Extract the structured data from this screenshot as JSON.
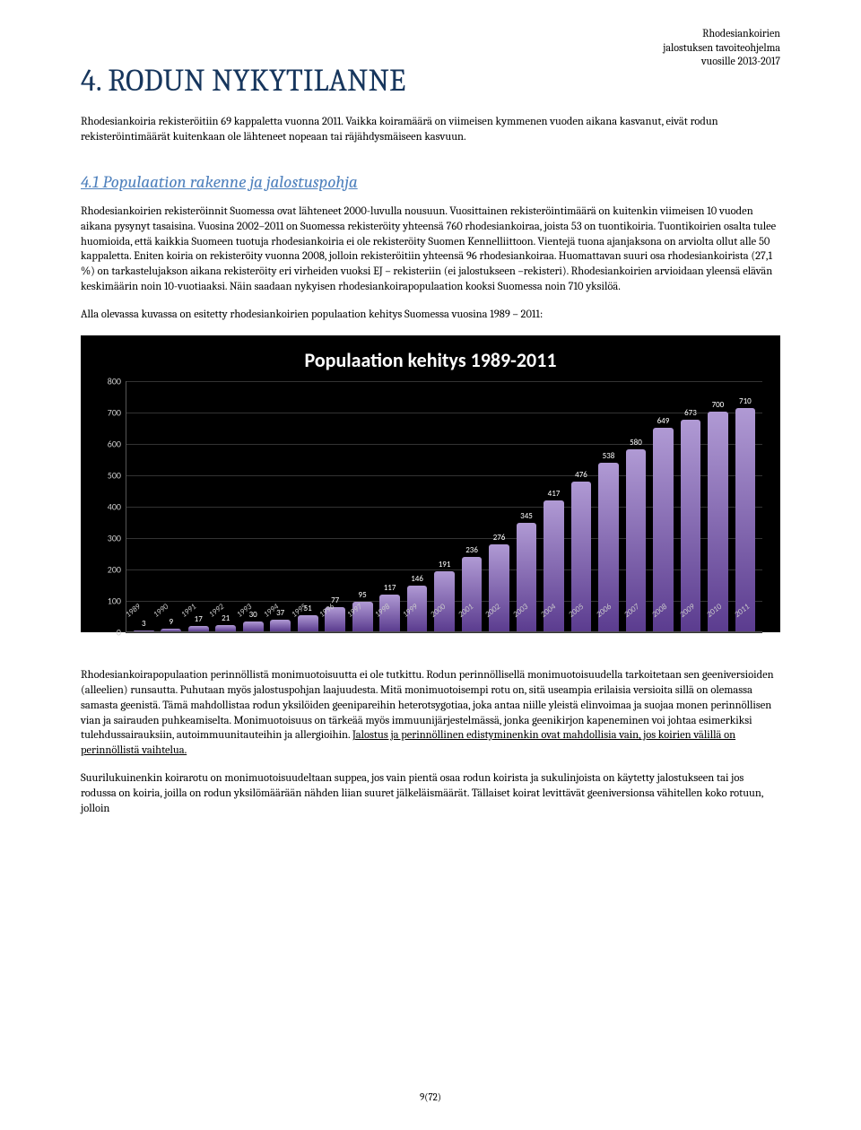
{
  "header": {
    "line1": "Rhodesiankoirien",
    "line2": "jalostuksen tavoiteohjelma",
    "line3": "vuosille 2013-2017"
  },
  "title": "4. RODUN NYKYTILANNE",
  "intro": "Rhodesiankoiria rekisteröitiin 69 kappaletta vuonna 2011. Vaikka koiramäärä on viimeisen kymmenen vuoden aikana kasvanut, eivät rodun rekisteröintimäärät kuitenkaan ole lähteneet nopeaan tai räjähdysmäiseen kasvuun.",
  "section_title": "4.1 Populaation rakenne ja jalostuspohja",
  "para1": "Rhodesiankoirien rekisteröinnit Suomessa ovat lähteneet 2000-luvulla nousuun. Vuosittainen rekisteröintimäärä on kuitenkin viimeisen 10 vuoden aikana pysynyt tasaisina. Vuosina 2002–2011 on Suomessa rekisteröity yhteensä 760 rhodesiankoiraa, joista 53 on tuontikoiria. Tuontikoirien osalta tulee huomioida, että kaikkia Suomeen tuotuja rhodesiankoiria ei ole rekisteröity Suomen Kennelliittoon. Vientejä tuona ajanjaksona on arviolta ollut alle 50 kappaletta. Eniten koiria on rekisteröity vuonna 2008, jolloin rekisteröitiin yhteensä 96 rhodesiankoiraa. Huomattavan suuri osa rhodesiankoirista (27,1 %) on tarkastelujakson aikana rekisteröity eri virheiden vuoksi EJ – rekisteriin (ei jalostukseen –rekisteri). Rhodesiankoirien arvioidaan yleensä elävän keskimäärin noin 10-vuotiaaksi. Näin saadaan nykyisen rhodesiankoirapopulaation kooksi Suomessa noin 710 yksilöä.",
  "para2": "Alla olevassa kuvassa on esitetty rhodesiankoirien populaation kehitys Suomessa vuosina 1989 – 2011:",
  "chart": {
    "type": "bar",
    "title": "Populaation kehitys 1989-2011",
    "title_fontsize": 22,
    "background_color": "#000000",
    "text_color": "#ffffff",
    "axis_text_color": "#cccccc",
    "grid_color": "#333333",
    "bar_color_top": "#b09ad4",
    "bar_color_bottom": "#5b3c8f",
    "ylim": [
      0,
      800
    ],
    "ytick_step": 100,
    "yticks": [
      0,
      100,
      200,
      300,
      400,
      500,
      600,
      700,
      800
    ],
    "categories": [
      "1989",
      "1990",
      "1991",
      "1992",
      "1993",
      "1994",
      "1995",
      "1996",
      "1997",
      "1998",
      "1999",
      "2000",
      "2001",
      "2002",
      "2003",
      "2004",
      "2005",
      "2006",
      "2007",
      "2008",
      "2009",
      "2010",
      "2011"
    ],
    "values": [
      3,
      9,
      17,
      21,
      30,
      37,
      51,
      77,
      95,
      117,
      146,
      191,
      236,
      276,
      345,
      417,
      476,
      538,
      580,
      649,
      673,
      700,
      710
    ],
    "label_fontsize": 9,
    "bar_width": 0.8
  },
  "para3_pre": "Rhodesiankoirapopulaation perinnöllistä monimuotoisuutta ei ole tutkittu. Rodun perinnöllisellä monimuotoisuudella tarkoitetaan sen geeniversioiden (alleelien) runsautta. Puhutaan myös jalostuspohjan laajuudesta. Mitä monimuotoisempi rotu on, sitä useampia erilaisia versioita sillä on olemassa samasta geenistä. Tämä mahdollistaa rodun yksilöiden geenipareihin heterotsygotiaa, joka antaa niille yleistä elinvoimaa ja suojaa monen perinnöllisen vian ja sairauden puhkeamiselta. Monimuotoisuus on tärkeää myös immuunijärjestelmässä, jonka geenikirjon kapeneminen voi johtaa esimerkiksi tulehdussairauksiin, autoimmuunitauteihin ja allergioihin. ",
  "para3_underlined": "Jalostus ja perinnöllinen edistyminenkin ovat mahdollisia vain, jos koirien välillä on perinnöllistä vaihtelua.",
  "para4": "Suurilukuinenkin koirarotu on monimuotoisuudeltaan suppea, jos vain pientä osaa rodun koirista ja sukulinjoista on käytetty jalostukseen tai jos rodussa on koiria, joilla on rodun yksilömäärään nähden liian suuret jälkeläismäärät. Tällaiset koirat levittävät geeniversionsa vähitellen koko rotuun, jolloin",
  "footer": "9(72)"
}
